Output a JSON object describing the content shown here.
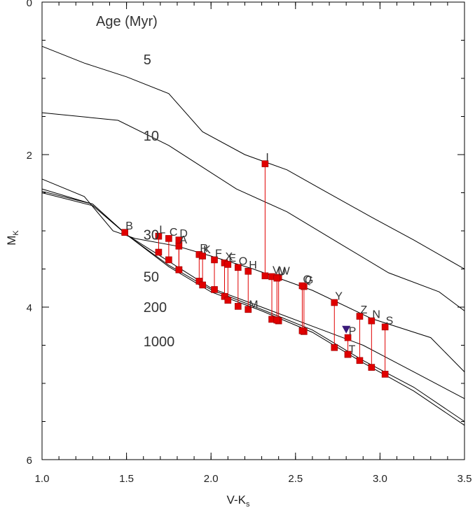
{
  "chart_data": {
    "type": "scatter",
    "xlabel": "V-K",
    "xlabel_sub": "s",
    "ylabel": "M",
    "ylabel_sub": "K",
    "xlim": [
      1.0,
      3.5
    ],
    "ylim": [
      6,
      0
    ],
    "y_inverted": true,
    "x_ticks": [
      1.0,
      1.5,
      2.0,
      2.5,
      3.0,
      3.5
    ],
    "x_tick_labels": [
      "1.0",
      "1.5",
      "2.0",
      "2.5",
      "3.0",
      "3.5"
    ],
    "y_ticks": [
      0,
      2,
      4,
      6
    ],
    "y_tick_labels": [
      "0",
      "2",
      "4",
      "6"
    ],
    "legend_title": "Age (Myr)",
    "isochrone_labels": [
      {
        "text": "5",
        "x": 1.6,
        "y": 0.75
      },
      {
        "text": "10",
        "x": 1.6,
        "y": 1.75
      },
      {
        "text": "30",
        "x": 1.6,
        "y": 3.05
      },
      {
        "text": "50",
        "x": 1.6,
        "y": 3.6
      },
      {
        "text": "200",
        "x": 1.6,
        "y": 4.0
      },
      {
        "text": "1000",
        "x": 1.6,
        "y": 4.45
      }
    ],
    "isochrones": [
      {
        "age": "5",
        "points": [
          [
            1.0,
            0.58
          ],
          [
            1.25,
            0.8
          ],
          [
            1.5,
            0.98
          ],
          [
            1.75,
            1.2
          ],
          [
            1.95,
            1.7
          ],
          [
            2.2,
            2.0
          ],
          [
            2.45,
            2.2
          ],
          [
            2.65,
            2.45
          ],
          [
            2.95,
            2.82
          ],
          [
            3.2,
            3.12
          ],
          [
            3.5,
            3.5
          ]
        ]
      },
      {
        "age": "10",
        "points": [
          [
            1.0,
            1.45
          ],
          [
            1.45,
            1.55
          ],
          [
            1.75,
            1.88
          ],
          [
            2.15,
            2.45
          ],
          [
            2.45,
            2.75
          ],
          [
            2.75,
            3.15
          ],
          [
            3.05,
            3.55
          ],
          [
            3.35,
            3.8
          ],
          [
            3.5,
            4.05
          ]
        ]
      },
      {
        "age": "30",
        "points": [
          [
            1.0,
            2.32
          ],
          [
            1.25,
            2.55
          ],
          [
            1.42,
            3.0
          ],
          [
            1.55,
            3.1
          ],
          [
            1.8,
            3.2
          ],
          [
            2.0,
            3.33
          ],
          [
            2.25,
            3.5
          ],
          [
            2.6,
            3.78
          ],
          [
            2.95,
            4.15
          ],
          [
            3.3,
            4.4
          ],
          [
            3.5,
            4.85
          ]
        ]
      },
      {
        "age": "50",
        "points": [
          [
            1.0,
            2.45
          ],
          [
            1.3,
            2.65
          ],
          [
            1.5,
            3.05
          ],
          [
            1.75,
            3.4
          ],
          [
            2.0,
            3.75
          ],
          [
            2.3,
            4.0
          ],
          [
            2.6,
            4.25
          ],
          [
            2.9,
            4.5
          ],
          [
            3.2,
            4.85
          ],
          [
            3.5,
            5.2
          ]
        ]
      },
      {
        "age": "200",
        "points": [
          [
            1.0,
            2.48
          ],
          [
            1.3,
            2.65
          ],
          [
            1.5,
            3.05
          ],
          [
            1.75,
            3.45
          ],
          [
            2.0,
            3.77
          ],
          [
            2.3,
            4.03
          ],
          [
            2.6,
            4.3
          ],
          [
            2.9,
            4.7
          ],
          [
            3.2,
            5.05
          ],
          [
            3.5,
            5.5
          ]
        ]
      },
      {
        "age": "1000",
        "points": [
          [
            1.0,
            2.5
          ],
          [
            1.3,
            2.67
          ],
          [
            1.5,
            3.05
          ],
          [
            1.75,
            3.47
          ],
          [
            2.0,
            3.8
          ],
          [
            2.3,
            4.05
          ],
          [
            2.6,
            4.33
          ],
          [
            2.9,
            4.73
          ],
          [
            3.2,
            5.1
          ],
          [
            3.5,
            5.55
          ]
        ]
      }
    ],
    "stars": [
      {
        "label": "B",
        "x": 1.49,
        "y_upper": 3.02,
        "y_lower": 3.02
      },
      {
        "label": "L",
        "x": 1.69,
        "y_upper": 3.07,
        "y_lower": 3.28
      },
      {
        "label": "C",
        "x": 1.75,
        "y_upper": 3.1,
        "y_lower": 3.38
      },
      {
        "label": "D",
        "x": 1.81,
        "y_upper": 3.12,
        "y_lower": 3.51
      },
      {
        "label": "A",
        "x": 1.81,
        "y_upper": 3.2,
        "y_lower": 3.51
      },
      {
        "label": "R",
        "x": 1.93,
        "y_upper": 3.31,
        "y_lower": 3.66
      },
      {
        "label": "K",
        "x": 1.95,
        "y_upper": 3.33,
        "y_lower": 3.71
      },
      {
        "label": "F",
        "x": 2.02,
        "y_upper": 3.38,
        "y_lower": 3.77
      },
      {
        "label": "X",
        "x": 2.08,
        "y_upper": 3.42,
        "y_lower": 3.86
      },
      {
        "label": "E",
        "x": 2.1,
        "y_upper": 3.44,
        "y_lower": 3.91
      },
      {
        "label": "O",
        "x": 2.16,
        "y_upper": 3.48,
        "y_lower": 3.99
      },
      {
        "label": "H",
        "x": 2.22,
        "y_upper": 3.53,
        "y_lower": 4.03
      },
      {
        "label": "M",
        "x": 2.22,
        "y_upper": 4.03,
        "y_lower": 4.03
      },
      {
        "label": "I",
        "x": 2.32,
        "y_upper": 2.12,
        "y_lower": 3.59
      },
      {
        "label": "V",
        "x": 2.36,
        "y_upper": 3.6,
        "y_lower": 4.16
      },
      {
        "label": "W",
        "x": 2.4,
        "y_upper": 3.61,
        "y_lower": 4.18
      },
      {
        "label": "U",
        "x": 2.39,
        "y_upper": 3.62,
        "y_lower": 4.17
      },
      {
        "label": "G",
        "x": 2.55,
        "y_upper": 3.73,
        "y_lower": 4.32
      },
      {
        "label": "Q",
        "x": 2.54,
        "y_upper": 3.72,
        "y_lower": 4.31
      },
      {
        "label": "Y",
        "x": 2.73,
        "y_upper": 3.94,
        "y_lower": 4.53
      },
      {
        "label": "T",
        "x": 2.81,
        "y_upper": 4.62,
        "y_lower": 4.62
      },
      {
        "label": "P",
        "x": 2.81,
        "y_upper": 4.4,
        "y_lower": 4.62
      },
      {
        "label": "Z",
        "x": 2.88,
        "y_upper": 4.12,
        "y_lower": 4.7
      },
      {
        "label": "N",
        "x": 2.95,
        "y_upper": 4.18,
        "y_lower": 4.79
      },
      {
        "label": "S",
        "x": 3.03,
        "y_upper": 4.26,
        "y_lower": 4.88
      }
    ],
    "triangle_marker": {
      "x": 2.8,
      "y": 4.3,
      "color": "#3a1a7a"
    },
    "colors": {
      "marker": "#e00000",
      "line": "#000000"
    }
  }
}
